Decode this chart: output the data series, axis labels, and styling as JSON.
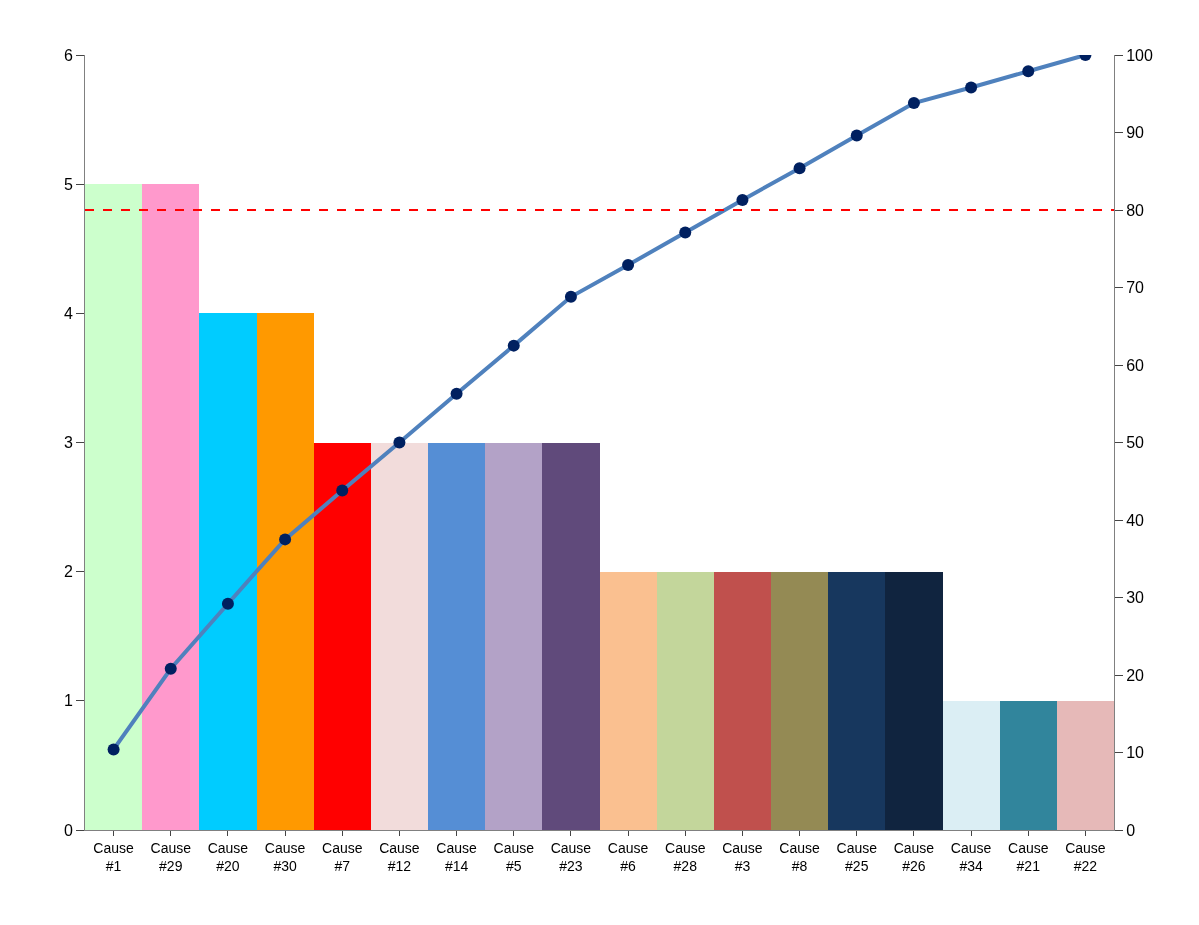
{
  "chart_data": {
    "type": "bar",
    "categories": [
      "Cause #1",
      "Cause #29",
      "Cause #20",
      "Cause #30",
      "Cause #7",
      "Cause #12",
      "Cause #14",
      "Cause #5",
      "Cause #23",
      "Cause #6",
      "Cause #28",
      "Cause #3",
      "Cause #8",
      "Cause #25",
      "Cause #26",
      "Cause #34",
      "Cause #21",
      "Cause #22"
    ],
    "series": [
      {
        "values": [
          5,
          5,
          4,
          4,
          3,
          3,
          3,
          3,
          3,
          2,
          2,
          2,
          2,
          2,
          2,
          1,
          1,
          1
        ],
        "colors": [
          "#ccffcc",
          "#ff99cc",
          "#00ccff",
          "#ff9900",
          "#ff0000",
          "#f2dcdb",
          "#558ed5",
          "#b3a2c7",
          "#604a7b",
          "#fac090",
          "#c3d69b",
          "#c0504d",
          "#948a54",
          "#17375e",
          "#10243f",
          "#dbeef4",
          "#31859c",
          "#e6b9b8"
        ]
      },
      {
        "type": "line",
        "axis": "y2",
        "color": "#4f81bd",
        "marker": "circle",
        "values": [
          10.4,
          20.8,
          29.2,
          37.5,
          43.8,
          50.0,
          56.3,
          62.5,
          68.8,
          72.9,
          77.1,
          81.3,
          85.4,
          89.6,
          93.8,
          95.8,
          97.9,
          100.0
        ]
      }
    ],
    "ylim": [
      0,
      6
    ],
    "yticks": [
      0,
      1,
      2,
      3,
      4,
      5,
      6
    ],
    "y2lim": [
      0,
      100
    ],
    "y2ticks": [
      0,
      10,
      20,
      30,
      40,
      50,
      60,
      70,
      80,
      90,
      100
    ],
    "ref_lines": [
      {
        "axis": "y2",
        "value": 80,
        "color": "#ff0000",
        "line_style": "dashed"
      }
    ]
  }
}
